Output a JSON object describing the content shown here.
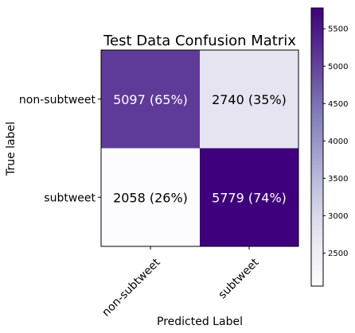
{
  "chart_data": {
    "type": "heatmap",
    "title": "Test Data Confusion Matrix",
    "xlabel": "Predicted Label",
    "ylabel": "True label",
    "x_categories": [
      "non-subtweet",
      "subtweet"
    ],
    "y_categories": [
      "non-subtweet",
      "subtweet"
    ],
    "values": [
      [
        5097,
        2740
      ],
      [
        2058,
        5779
      ]
    ],
    "cell_labels": [
      [
        "5097 (65%)",
        "2740 (35%)"
      ],
      [
        "2058 (26%)",
        "5779 (74%)"
      ]
    ],
    "colormap": "Purples",
    "colormap_stops": [
      "#fcfbfd",
      "#efedf5",
      "#dadaeb",
      "#bcbddc",
      "#9e9ac8",
      "#807dba",
      "#6a51a3",
      "#54278f",
      "#3f007d"
    ],
    "colorbar": {
      "range": [
        2058,
        5779
      ],
      "ticks": [
        2500,
        3000,
        3500,
        4000,
        4500,
        5000,
        5500
      ],
      "tick_labels": [
        "2500",
        "3000",
        "3500",
        "4000",
        "4500",
        "5000",
        "5500"
      ]
    },
    "grid": false,
    "legend": "right"
  }
}
